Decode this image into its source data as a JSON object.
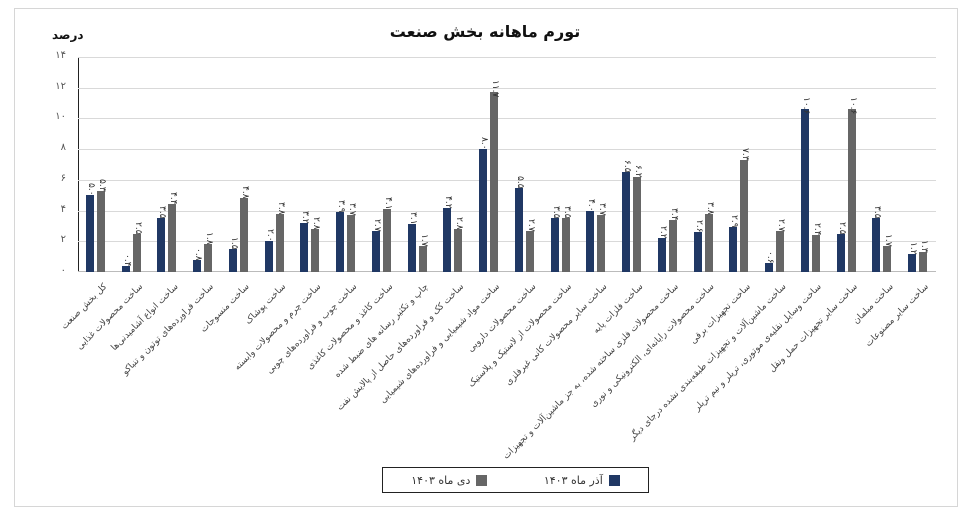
{
  "chart_data": {
    "type": "bar",
    "title": "تورم ماهانه بخش صنعت",
    "ylabel": "درصد",
    "xlabel": "",
    "ylim": [
      0,
      14
    ],
    "yticks": [
      "۰",
      "۲",
      "۴",
      "۶",
      "۸",
      "۱۰",
      "۱۲",
      "۱۴"
    ],
    "ytick_values": [
      0,
      2,
      4,
      6,
      8,
      10,
      12,
      14
    ],
    "grid": true,
    "legend_position": "bottom",
    "categories": [
      "کل بخش صنعت",
      "ساخت محصولات غذایی",
      "ساخت انواع آشامیدنی‌ها",
      "ساخت فراورده‌های توتون و تنباکو",
      "ساخت منسوجات",
      "ساخت پوشاک",
      "ساخت چرم و محصولات وابسته",
      "ساخت چوب و فراورده‌های چوبی",
      "ساخت کاغذ و محصولات کاغذی",
      "چاپ و تکثیر رسانه های ضبط شده",
      "ساخت کک و فراورده‌های حاصل از پالایش نفت",
      "ساخت مواد شیمیایی و فراورده‌های شیمیایی",
      "ساخت محصولات دارویی",
      "ساخت محصولات از لاستیک و پلاستیک",
      "ساخت سایر محصولات کانی غیرفلزی",
      "ساخت فلزات پایه",
      "ساخت محصولات فلزی ساخته شده، به جز ماشین‌آلات و تجهیزات",
      "ساخت محصولات رایانه‌ای، الکترونیکی و نوری",
      "ساخت تجهیزات برقی",
      "ساخت ماشین‌آلات و تجهیزات طبقه‌بندی نشده درجای دیگر",
      "ساخت وسایل نقلیه‌ی موتوری، تریلر و نیم تریلر",
      "ساخت سایر تجهیزات حمل ونقل",
      "ساخت مبلمان",
      "ساخت سایر مصنوعات"
    ],
    "series": [
      {
        "name": "آذر ماه ۱۴۰۳",
        "color": "#203864",
        "values": [
          5.0,
          0.4,
          3.5,
          0.8,
          1.5,
          2.0,
          3.2,
          3.9,
          2.7,
          3.1,
          4.2,
          8.0,
          5.5,
          3.5,
          4.0,
          6.5,
          2.2,
          2.6,
          2.9,
          0.6,
          10.6,
          2.5,
          3.5,
          1.2
        ],
        "labels": [
          "۵.۰",
          "۰.۴",
          "۳.۵",
          "۰.۸",
          "۱.۵",
          "۲.۰",
          "۳.۲",
          "۳.۹",
          "۲.۷",
          "۳.۱",
          "۴.۲",
          "۸.۰",
          "۵.۵",
          "۳.۵",
          "۴.۰",
          "۶.۵",
          "۲.۲",
          "۲.۶",
          "۲.۹",
          "۰.۶",
          "۱۰.۶",
          "۲.۵",
          "۳.۵",
          "۱.۲"
        ]
      },
      {
        "name": "دی ماه ۱۴۰۳",
        "color": "#666666",
        "values": [
          5.3,
          2.5,
          4.4,
          1.8,
          4.8,
          3.8,
          2.8,
          3.7,
          4.1,
          1.7,
          2.8,
          11.7,
          2.7,
          3.5,
          3.7,
          6.2,
          3.4,
          3.8,
          7.3,
          2.7,
          2.4,
          10.6,
          1.7,
          1.3
        ],
        "labels": [
          "۵.۳",
          "۲.۵",
          "۴.۴",
          "۱.۸",
          "۴.۸",
          "۳.۸",
          "۲.۸",
          "۳.۷",
          "۴.۱",
          "۱.۷",
          "۲.۸",
          "۱۱.۷",
          "۲.۷",
          "۳.۵",
          "۳.۷",
          "۶.۲",
          "۳.۴",
          "۳.۸",
          "۷.۳",
          "۲.۷",
          "۲.۴",
          "۱۰.۶",
          "۱.۷",
          "۱.۳"
        ]
      }
    ]
  },
  "legend": {
    "item1_label": "آذر ماه ۱۴۰۳",
    "item2_label": "دی ماه ۱۴۰۳"
  }
}
